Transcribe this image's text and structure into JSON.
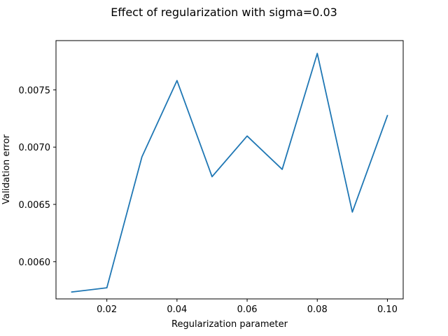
{
  "chart_data": {
    "type": "line",
    "title": "Effect of regularization with sigma=0.03",
    "xlabel": "Regularization parameter",
    "ylabel": "Validation error",
    "grid": false,
    "legend": "none",
    "xlim": [
      0.0055,
      0.1045
    ],
    "ylim": [
      0.005675,
      0.00793
    ],
    "xticks": [
      0.02,
      0.04,
      0.06,
      0.08,
      0.1
    ],
    "xtick_labels": [
      "0.02",
      "0.04",
      "0.06",
      "0.08",
      "0.10"
    ],
    "yticks": [
      0.006,
      0.0065,
      0.007,
      0.0075
    ],
    "ytick_labels": [
      "0.0060",
      "0.0065",
      "0.0070",
      "0.0075"
    ],
    "series": [
      {
        "color": "#1f77b4",
        "x": [
          0.01,
          0.02,
          0.03,
          0.04,
          0.05,
          0.06,
          0.07,
          0.08,
          0.09,
          0.1
        ],
        "y": [
          0.005735,
          0.005772,
          0.006915,
          0.007581,
          0.006742,
          0.007097,
          0.006806,
          0.007818,
          0.006433,
          0.007275
        ]
      }
    ]
  }
}
